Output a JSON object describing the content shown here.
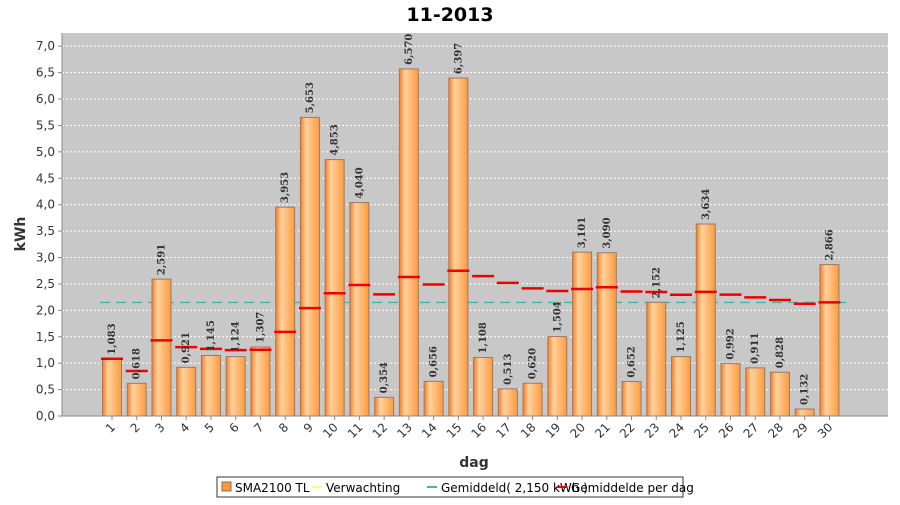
{
  "chart_data": {
    "type": "bar",
    "title": "11-2013",
    "xlabel": "dag",
    "ylabel": "kWh",
    "ylim": [
      0,
      7.25
    ],
    "yticks": [
      "0,0",
      "0,5",
      "1,0",
      "1,5",
      "2,0",
      "2,5",
      "3,0",
      "3,5",
      "4,0",
      "4,5",
      "5,0",
      "5,5",
      "6,0",
      "6,5",
      "7,0"
    ],
    "categories": [
      "1",
      "2",
      "3",
      "4",
      "5",
      "6",
      "7",
      "8",
      "9",
      "10",
      "11",
      "12",
      "13",
      "14",
      "15",
      "16",
      "17",
      "18",
      "19",
      "20",
      "21",
      "22",
      "23",
      "24",
      "25",
      "26",
      "27",
      "28",
      "29",
      "30"
    ],
    "series": [
      {
        "name": "SMA2100 TL",
        "values": [
          1.083,
          0.618,
          2.591,
          0.921,
          1.145,
          1.124,
          1.307,
          3.953,
          5.653,
          4.853,
          4.04,
          0.354,
          6.57,
          0.656,
          6.397,
          1.108,
          0.513,
          0.62,
          1.504,
          3.101,
          3.09,
          0.652,
          2.152,
          1.125,
          3.634,
          0.992,
          0.911,
          0.828,
          0.132,
          2.866
        ],
        "labels": [
          "1,083",
          "0,618",
          "2,591",
          "0,921",
          "1,145",
          "1,124",
          "1,307",
          "3,953",
          "5,653",
          "4,853",
          "4,040",
          "0,354",
          "6,570",
          "0,656",
          "6,397",
          "1,108",
          "0,513",
          "0,620",
          "1,504",
          "3,101",
          "3,090",
          "0,652",
          "2,152",
          "1,125",
          "3,634",
          "0,992",
          "0,911",
          "0,828",
          "0,132",
          "2,866"
        ]
      },
      {
        "name": "Gemiddelde per dag",
        "values": [
          1.083,
          0.851,
          1.431,
          1.303,
          1.271,
          1.246,
          1.255,
          1.592,
          2.043,
          2.324,
          2.48,
          2.303,
          2.631,
          2.49,
          2.75,
          2.647,
          2.521,
          2.415,
          2.367,
          2.404,
          2.437,
          2.356,
          2.347,
          2.296,
          2.35,
          2.298,
          2.246,
          2.195,
          2.124,
          2.15
        ]
      }
    ],
    "verwachting": {
      "name": "Verwachting"
    },
    "average": {
      "name": "Gemiddeld( 2,150 kWh )",
      "value": 2.15
    },
    "colors": {
      "bar": "#ff9a3c",
      "bar_light": "#ffd2a0",
      "bar_dark": "#ff7a1a",
      "average_line": "#33bbbb",
      "daily_avg": "#ee0000",
      "verwachting": "#ffff66",
      "plot_bg": "#c8c8c8"
    }
  }
}
